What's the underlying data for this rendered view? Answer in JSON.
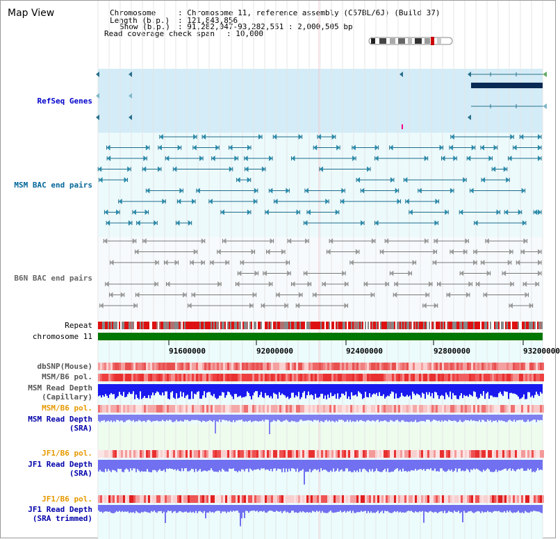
{
  "title": "Map View",
  "info": {
    "chromosome_key": "Chromosome",
    "chromosome_val": ": Chromosome 11, reference assembly (C57BL/6J) (Build 37)",
    "length_key": "Length (b.p.)",
    "length_val": ": 121,843,856",
    "show_key": "Show (b.p.)",
    "show_val": ": 91,282,047-93,282,551 : 2,000,505 bp",
    "coverage_key": "Read coverage check span",
    "coverage_val": ": 10,000"
  },
  "tracks": {
    "refseq": "RefSeq Genes",
    "msm_bac": "MSM BAC end pairs",
    "b6n_bac": "B6N BAC end pairs",
    "repeat": "Repeat",
    "chromosome": "chromosome 11",
    "dbsnp": "dbSNP(Mouse)",
    "msm_b6_pol_1": "MSM/B6 pol.",
    "msm_depth_cap_1": "MSM Read Depth",
    "msm_depth_cap_2": "(Capillary)",
    "msm_b6_pol_2": "MSM/B6 pol.",
    "msm_depth_sra_1": "MSM Read Depth",
    "msm_depth_sra_2": "(SRA)",
    "jf1_b6_pol_1": "JF1/B6 pol.",
    "jf1_depth_sra_1": "JF1 Read Depth",
    "jf1_depth_sra_2": "(SRA)",
    "jf1_b6_pol_2": "JF1/B6 pol.",
    "jf1_depth_trim_1": "JF1 Read Depth",
    "jf1_depth_trim_2": "(SRA trimmed)"
  },
  "axis_ticks": [
    "91600000",
    "92000000",
    "92400000",
    "92800000",
    "93200000"
  ],
  "colors": {
    "refseq_label": "#0000cc",
    "msm_label": "#006699",
    "b6n_label": "#666666",
    "orange_label": "#e69900",
    "blue_label": "#0000aa",
    "chromosome_bar": "#007700",
    "depth_blue": "#0000ee",
    "depth_light": "#8080f0"
  }
}
